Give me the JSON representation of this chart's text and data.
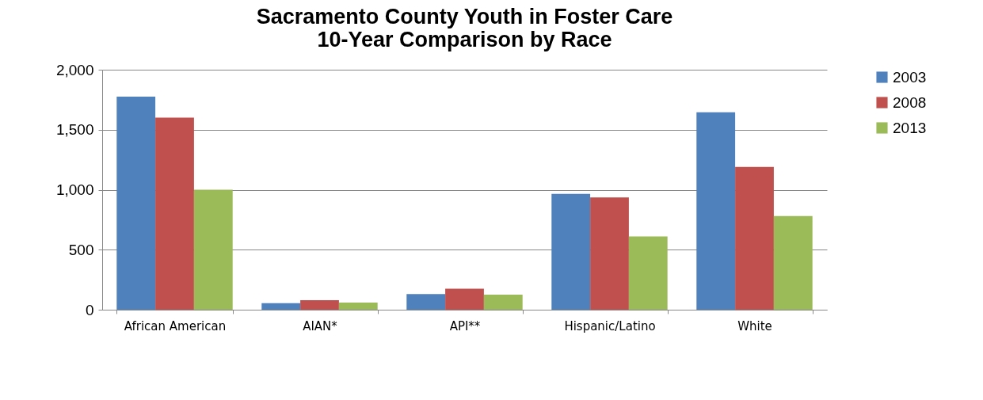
{
  "chart_data": {
    "type": "bar",
    "title": "Sacramento County Youth in Foster Care\n10-Year Comparison by Race",
    "categories": [
      "African American",
      "AIAN*",
      "API**",
      "Hispanic/Latino",
      "White"
    ],
    "series": [
      {
        "name": "2003",
        "color": "#4f81bd",
        "values": [
          1775,
          55,
          130,
          965,
          1645
        ]
      },
      {
        "name": "2008",
        "color": "#c0504d",
        "values": [
          1600,
          80,
          175,
          935,
          1190
        ]
      },
      {
        "name": "2013",
        "color": "#9bbb59",
        "values": [
          1000,
          60,
          125,
          610,
          780
        ]
      }
    ],
    "ylim": [
      0,
      2000
    ],
    "yticks": [
      0,
      {
        "value": 500,
        "label": "500"
      },
      {
        "value": 1000,
        "label": "1,000"
      },
      {
        "value": 1500,
        "label": "1,500"
      },
      {
        "value": 2000,
        "label": "2,000"
      }
    ],
    "grid": "y",
    "legend": "right"
  }
}
